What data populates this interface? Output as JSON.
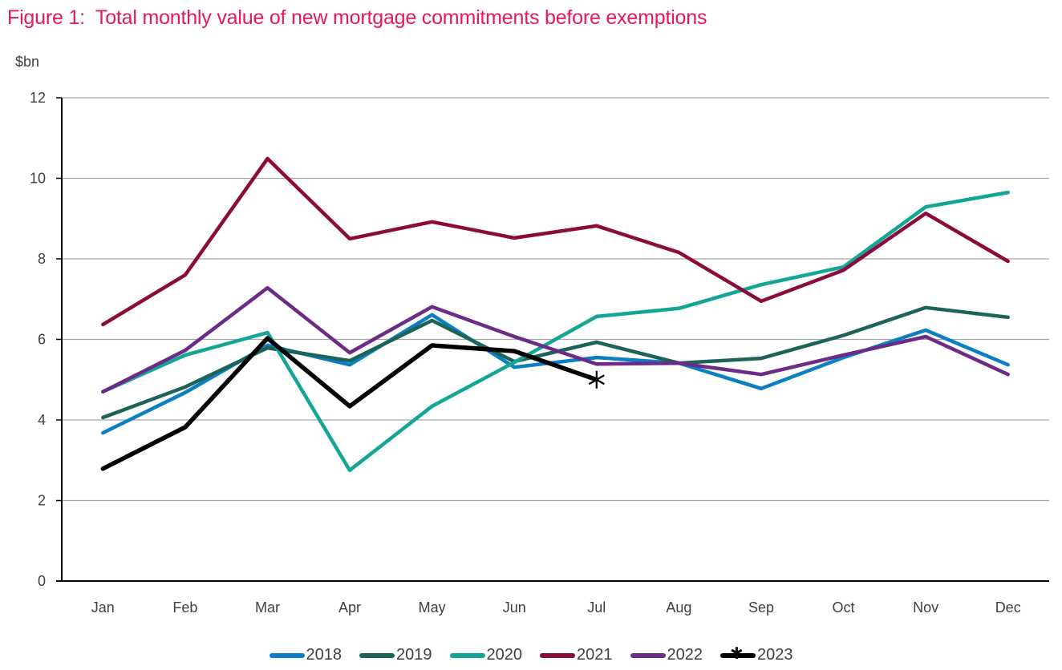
{
  "chart_data": {
    "type": "line",
    "title": "Figure 1:  Total monthly value of new mortgage commitments before exemptions",
    "title_color": "#e8175d",
    "ylabel": "$bn",
    "xlabel": "",
    "ylim": [
      0,
      12
    ],
    "yticks": [
      0,
      2,
      4,
      6,
      8,
      10,
      12
    ],
    "grid": true,
    "legend_position": "bottom",
    "categories": [
      "Jan",
      "Feb",
      "Mar",
      "Apr",
      "May",
      "Jun",
      "Jul",
      "Aug",
      "Sep",
      "Oct",
      "Nov",
      "Dec"
    ],
    "series": [
      {
        "name": "2018",
        "color": "#0a7fc4",
        "marker": "none",
        "values": [
          3.68,
          4.68,
          5.85,
          5.37,
          6.61,
          5.31,
          5.55,
          5.41,
          4.78,
          5.55,
          6.23,
          5.37
        ]
      },
      {
        "name": "2019",
        "color": "#1d6358",
        "marker": "none",
        "values": [
          4.06,
          4.82,
          5.79,
          5.47,
          6.47,
          5.45,
          5.93,
          5.41,
          5.53,
          6.1,
          6.79,
          6.55
        ]
      },
      {
        "name": "2020",
        "color": "#13a595",
        "marker": "none",
        "values": [
          4.7,
          5.61,
          6.17,
          2.75,
          4.34,
          5.43,
          6.57,
          6.77,
          7.36,
          7.8,
          9.29,
          9.65
        ]
      },
      {
        "name": "2021",
        "color": "#8c0a3c",
        "marker": "none",
        "values": [
          6.37,
          7.6,
          10.49,
          8.5,
          8.92,
          8.52,
          8.82,
          8.16,
          6.95,
          7.72,
          9.13,
          7.94
        ]
      },
      {
        "name": "2022",
        "color": "#6b2b86",
        "marker": "none",
        "values": [
          4.7,
          5.73,
          7.28,
          5.67,
          6.81,
          6.07,
          5.39,
          5.41,
          5.13,
          5.61,
          6.07,
          5.13
        ]
      },
      {
        "name": "2023",
        "color": "#000000",
        "marker": "star-last",
        "values": [
          2.79,
          3.82,
          6.03,
          4.34,
          5.85,
          5.71,
          5.0
        ]
      }
    ]
  }
}
